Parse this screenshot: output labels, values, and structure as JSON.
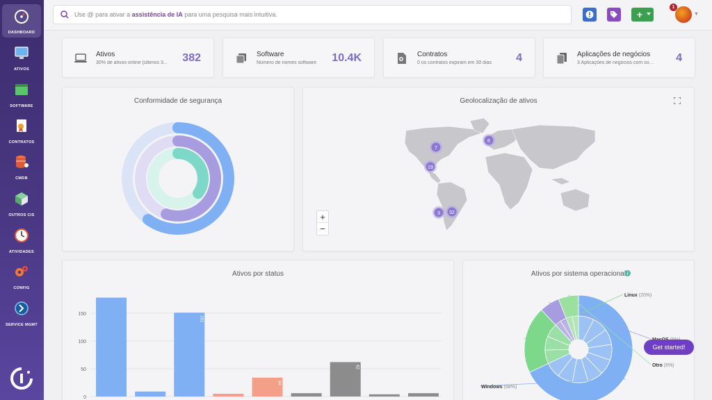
{
  "sidebar": {
    "items": [
      {
        "label": "DASHBOARD",
        "icon": "dashboard-gauge-icon",
        "active": true
      },
      {
        "label": "ATIVOS",
        "icon": "monitor-icon"
      },
      {
        "label": "SOFTWARE",
        "icon": "software-window-icon"
      },
      {
        "label": "CONTRATOS",
        "icon": "contract-document-icon"
      },
      {
        "label": "CMDB",
        "icon": "database-icon"
      },
      {
        "label": "OUTROS CIS",
        "icon": "box-icon"
      },
      {
        "label": "ATIVIDADES",
        "icon": "clock-icon"
      },
      {
        "label": "CONFIG",
        "icon": "gears-icon"
      },
      {
        "label": "SERVICE MGMT",
        "icon": "service-mgmt-icon"
      }
    ]
  },
  "search": {
    "prefix": "Use @ para ativar a ",
    "highlight": "assistência de IA",
    "suffix": " para uma pesquisa mais intuitiva."
  },
  "header": {
    "notification_count": "1",
    "add_label": "+"
  },
  "stats": [
    {
      "title": "Ativos",
      "subtitle": "30% de ativos online (últimos 3...",
      "value": "382",
      "icon": "laptop-icon"
    },
    {
      "title": "Software",
      "subtitle": "Número de nomes software",
      "value": "10.4K",
      "icon": "software-copies-icon"
    },
    {
      "title": "Contratos",
      "subtitle": "0 os contratos expiram em 30 dias",
      "value": "4",
      "icon": "contract-icon"
    },
    {
      "title": "Aplicações de negócios",
      "subtitle": "3 Aplicações de negócios com solicitaç...",
      "value": "4",
      "icon": "documents-icon"
    }
  ],
  "security": {
    "title": "Conformidade de segurança",
    "colors": {
      "outer": "#7fb0f4",
      "middle": "#a89ce0",
      "inner": "#7dd8c8"
    }
  },
  "geo": {
    "title": "Geolocalização de ativos",
    "clusters": [
      {
        "label": "7"
      },
      {
        "label": "6"
      },
      {
        "label": "19"
      },
      {
        "label": "3"
      },
      {
        "label": "32"
      }
    ],
    "zoom_in": "+",
    "zoom_out": "−"
  },
  "status_chart": {
    "title": "Ativos por status",
    "chart_data": {
      "type": "bar",
      "yticks": [
        0,
        50,
        100,
        150
      ],
      "ylim": [
        0,
        180
      ],
      "bars": [
        {
          "value": 178,
          "color": "#7fb0f4"
        },
        {
          "value": 9,
          "color": "#7fb0f4"
        },
        {
          "value": 151,
          "color": "#7fb0f4",
          "label": "151"
        },
        {
          "value": 5,
          "color": "#f4a088"
        },
        {
          "value": 34,
          "color": "#f4a088",
          "label": "34"
        },
        {
          "value": 6,
          "color": "#8c8c8c"
        },
        {
          "value": 62,
          "color": "#8c8c8c",
          "label": "62"
        },
        {
          "value": 4,
          "color": "#8c8c8c"
        },
        {
          "value": 6,
          "color": "#8c8c8c"
        }
      ]
    }
  },
  "os_chart": {
    "title": "Ativos por sistema operacional",
    "chart_data": {
      "type": "pie",
      "slices": [
        {
          "name": "Windows",
          "label": "Windows (68%)",
          "value": 68,
          "color": "#7fb0f4"
        },
        {
          "name": "Linux",
          "label": "Linux (20%)",
          "value": 20,
          "color": "#7dd88c"
        },
        {
          "name": "MacOS",
          "label": "MacOS (6%)",
          "value": 6,
          "color": "#a89ce0"
        },
        {
          "name": "Otro",
          "label": "Otro (6%)",
          "value": 6,
          "color": "#9ce0a0"
        }
      ]
    }
  },
  "get_started": "Get started!"
}
